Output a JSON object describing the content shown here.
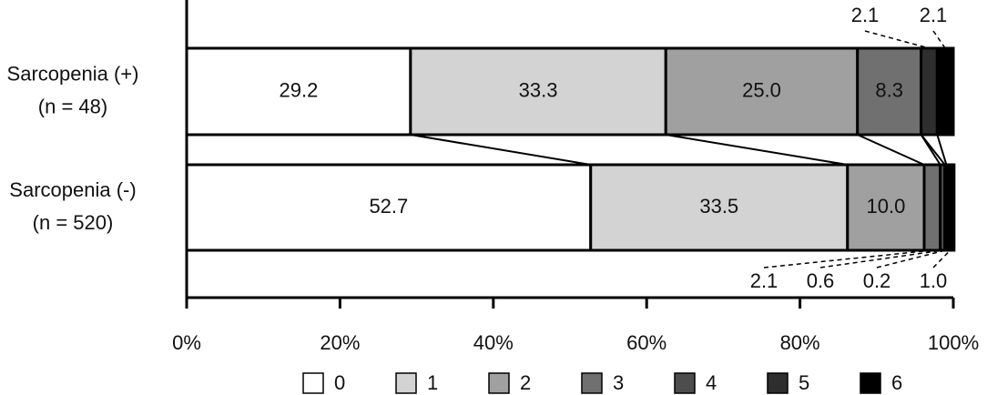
{
  "chart_data": {
    "type": "stacked_bar_100",
    "categories": [
      [
        "Sarcopenia (+)",
        "(n = 48)"
      ],
      [
        "Sarcopenia (-)",
        "(n = 520)"
      ]
    ],
    "series": [
      {
        "name": "0",
        "color": "#ffffff",
        "values": [
          29.2,
          52.7
        ],
        "value_labels": [
          "29.2",
          "52.7"
        ]
      },
      {
        "name": "1",
        "color": "#d3d3d3",
        "values": [
          33.3,
          33.5
        ],
        "value_labels": [
          "33.3",
          "33.5"
        ]
      },
      {
        "name": "2",
        "color": "#a0a0a0",
        "values": [
          25.0,
          10.0
        ],
        "value_labels": [
          "25.0",
          "10.0"
        ]
      },
      {
        "name": "3",
        "color": "#707070",
        "values": [
          8.3,
          2.1
        ],
        "value_labels": [
          "8.3",
          "2.1"
        ]
      },
      {
        "name": "4",
        "color": "#4d4d4d",
        "values": [
          0,
          0.6
        ],
        "value_labels": [
          null,
          "0.6"
        ]
      },
      {
        "name": "5",
        "color": "#2e2e2e",
        "values": [
          2.1,
          0.2
        ],
        "value_labels": [
          "2.1",
          "0.2"
        ]
      },
      {
        "name": "6",
        "color": "#000000",
        "values": [
          2.1,
          1.0
        ],
        "value_labels": [
          "2.1",
          "1.0"
        ]
      }
    ],
    "xlim": [
      0,
      100
    ],
    "xticks": [
      {
        "value": 0,
        "label": "0%"
      },
      {
        "value": 20,
        "label": "20%"
      },
      {
        "value": 40,
        "label": "40%"
      },
      {
        "value": 60,
        "label": "60%"
      },
      {
        "value": 80,
        "label": "80%"
      },
      {
        "value": 100,
        "label": "100%"
      }
    ],
    "legend": "bottom"
  }
}
